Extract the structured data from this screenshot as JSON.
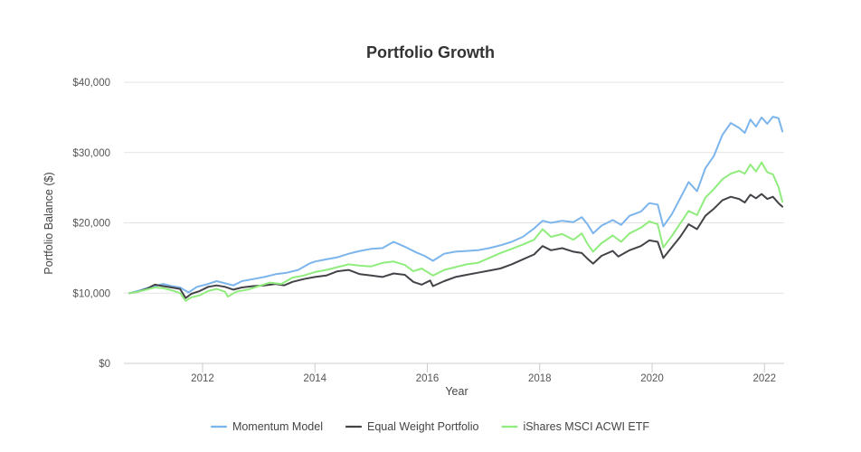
{
  "chart_data": {
    "type": "line",
    "title": "Portfolio Growth",
    "xlabel": "Year",
    "ylabel": "Portfolio Balance ($)",
    "xlim": [
      2010.6,
      2022.35
    ],
    "ylim": [
      0,
      40000
    ],
    "x_ticks": [
      2012,
      2014,
      2016,
      2018,
      2020,
      2022
    ],
    "x_tick_labels": [
      "2012",
      "2014",
      "2016",
      "2018",
      "2020",
      "2022"
    ],
    "y_ticks": [
      0,
      10000,
      20000,
      30000,
      40000
    ],
    "y_tick_labels": [
      "$0",
      "$10,000",
      "$20,000",
      "$30,000",
      "$40,000"
    ],
    "grid": true,
    "legend_position": "bottom",
    "series": [
      {
        "name": "Momentum Model",
        "color": "#7cb5ec",
        "points": [
          [
            2010.7,
            10000
          ],
          [
            2010.85,
            10300
          ],
          [
            2011.0,
            10700
          ],
          [
            2011.15,
            11000
          ],
          [
            2011.3,
            11300
          ],
          [
            2011.45,
            11000
          ],
          [
            2011.6,
            10800
          ],
          [
            2011.75,
            10100
          ],
          [
            2011.9,
            10900
          ],
          [
            2012.1,
            11300
          ],
          [
            2012.25,
            11700
          ],
          [
            2012.4,
            11400
          ],
          [
            2012.55,
            11100
          ],
          [
            2012.7,
            11700
          ],
          [
            2012.9,
            12000
          ],
          [
            2013.1,
            12300
          ],
          [
            2013.3,
            12700
          ],
          [
            2013.5,
            12900
          ],
          [
            2013.7,
            13300
          ],
          [
            2013.9,
            14200
          ],
          [
            2014.0,
            14500
          ],
          [
            2014.2,
            14800
          ],
          [
            2014.4,
            15100
          ],
          [
            2014.6,
            15600
          ],
          [
            2014.8,
            16000
          ],
          [
            2015.0,
            16300
          ],
          [
            2015.2,
            16400
          ],
          [
            2015.4,
            17300
          ],
          [
            2015.6,
            16600
          ],
          [
            2015.8,
            15800
          ],
          [
            2015.95,
            15300
          ],
          [
            2016.1,
            14600
          ],
          [
            2016.3,
            15600
          ],
          [
            2016.5,
            15900
          ],
          [
            2016.7,
            16000
          ],
          [
            2016.9,
            16100
          ],
          [
            2017.1,
            16400
          ],
          [
            2017.3,
            16800
          ],
          [
            2017.5,
            17300
          ],
          [
            2017.7,
            18000
          ],
          [
            2017.9,
            19200
          ],
          [
            2018.05,
            20300
          ],
          [
            2018.2,
            20000
          ],
          [
            2018.4,
            20300
          ],
          [
            2018.6,
            20100
          ],
          [
            2018.75,
            20800
          ],
          [
            2018.85,
            19800
          ],
          [
            2018.95,
            18500
          ],
          [
            2019.1,
            19600
          ],
          [
            2019.3,
            20400
          ],
          [
            2019.45,
            19700
          ],
          [
            2019.6,
            21000
          ],
          [
            2019.8,
            21600
          ],
          [
            2019.95,
            22800
          ],
          [
            2020.1,
            22600
          ],
          [
            2020.2,
            19500
          ],
          [
            2020.35,
            21200
          ],
          [
            2020.5,
            23500
          ],
          [
            2020.65,
            25800
          ],
          [
            2020.8,
            24500
          ],
          [
            2020.95,
            27800
          ],
          [
            2021.1,
            29500
          ],
          [
            2021.25,
            32500
          ],
          [
            2021.4,
            34200
          ],
          [
            2021.55,
            33500
          ],
          [
            2021.65,
            32800
          ],
          [
            2021.75,
            34700
          ],
          [
            2021.85,
            33700
          ],
          [
            2021.95,
            35000
          ],
          [
            2022.05,
            34100
          ],
          [
            2022.15,
            35100
          ],
          [
            2022.25,
            34900
          ],
          [
            2022.32,
            33000
          ]
        ]
      },
      {
        "name": "Equal Weight Portfolio",
        "color": "#434348",
        "points": [
          [
            2010.7,
            10000
          ],
          [
            2010.85,
            10200
          ],
          [
            2011.0,
            10600
          ],
          [
            2011.15,
            11200
          ],
          [
            2011.3,
            11000
          ],
          [
            2011.45,
            10800
          ],
          [
            2011.6,
            10600
          ],
          [
            2011.7,
            9300
          ],
          [
            2011.8,
            9900
          ],
          [
            2011.95,
            10300
          ],
          [
            2012.1,
            10900
          ],
          [
            2012.25,
            11100
          ],
          [
            2012.4,
            10900
          ],
          [
            2012.55,
            10500
          ],
          [
            2012.7,
            10800
          ],
          [
            2012.9,
            11000
          ],
          [
            2013.1,
            11100
          ],
          [
            2013.3,
            11300
          ],
          [
            2013.45,
            11100
          ],
          [
            2013.6,
            11600
          ],
          [
            2013.8,
            12000
          ],
          [
            2014.0,
            12300
          ],
          [
            2014.2,
            12500
          ],
          [
            2014.4,
            13100
          ],
          [
            2014.6,
            13300
          ],
          [
            2014.8,
            12700
          ],
          [
            2015.0,
            12500
          ],
          [
            2015.2,
            12300
          ],
          [
            2015.4,
            12800
          ],
          [
            2015.6,
            12600
          ],
          [
            2015.75,
            11600
          ],
          [
            2015.9,
            11200
          ],
          [
            2016.05,
            11800
          ],
          [
            2016.1,
            11000
          ],
          [
            2016.3,
            11700
          ],
          [
            2016.5,
            12300
          ],
          [
            2016.7,
            12600
          ],
          [
            2016.9,
            12900
          ],
          [
            2017.1,
            13200
          ],
          [
            2017.3,
            13500
          ],
          [
            2017.5,
            14100
          ],
          [
            2017.7,
            14800
          ],
          [
            2017.9,
            15500
          ],
          [
            2018.05,
            16700
          ],
          [
            2018.2,
            16100
          ],
          [
            2018.4,
            16400
          ],
          [
            2018.6,
            15900
          ],
          [
            2018.75,
            15700
          ],
          [
            2018.85,
            14900
          ],
          [
            2018.95,
            14200
          ],
          [
            2019.1,
            15300
          ],
          [
            2019.3,
            16000
          ],
          [
            2019.4,
            15200
          ],
          [
            2019.6,
            16100
          ],
          [
            2019.8,
            16700
          ],
          [
            2019.95,
            17500
          ],
          [
            2020.1,
            17300
          ],
          [
            2020.2,
            15000
          ],
          [
            2020.35,
            16500
          ],
          [
            2020.5,
            18000
          ],
          [
            2020.65,
            19800
          ],
          [
            2020.8,
            19100
          ],
          [
            2020.95,
            21000
          ],
          [
            2021.1,
            22000
          ],
          [
            2021.25,
            23200
          ],
          [
            2021.4,
            23700
          ],
          [
            2021.55,
            23400
          ],
          [
            2021.65,
            22900
          ],
          [
            2021.75,
            24000
          ],
          [
            2021.85,
            23500
          ],
          [
            2021.95,
            24100
          ],
          [
            2022.05,
            23400
          ],
          [
            2022.15,
            23700
          ],
          [
            2022.25,
            22800
          ],
          [
            2022.32,
            22300
          ]
        ]
      },
      {
        "name": "iShares MSCI ACWI ETF",
        "color": "#90ed7d",
        "points": [
          [
            2010.7,
            10000
          ],
          [
            2010.85,
            10200
          ],
          [
            2011.0,
            10500
          ],
          [
            2011.15,
            10800
          ],
          [
            2011.3,
            10700
          ],
          [
            2011.45,
            10400
          ],
          [
            2011.6,
            10000
          ],
          [
            2011.7,
            8900
          ],
          [
            2011.8,
            9400
          ],
          [
            2011.95,
            9700
          ],
          [
            2012.1,
            10300
          ],
          [
            2012.25,
            10600
          ],
          [
            2012.4,
            10200
          ],
          [
            2012.45,
            9500
          ],
          [
            2012.6,
            10200
          ],
          [
            2012.8,
            10500
          ],
          [
            2013.0,
            11000
          ],
          [
            2013.2,
            11500
          ],
          [
            2013.4,
            11300
          ],
          [
            2013.6,
            12200
          ],
          [
            2013.8,
            12500
          ],
          [
            2014.0,
            13000
          ],
          [
            2014.2,
            13300
          ],
          [
            2014.4,
            13700
          ],
          [
            2014.6,
            14100
          ],
          [
            2014.8,
            13900
          ],
          [
            2015.0,
            13800
          ],
          [
            2015.2,
            14300
          ],
          [
            2015.4,
            14500
          ],
          [
            2015.6,
            14000
          ],
          [
            2015.75,
            13100
          ],
          [
            2015.9,
            13500
          ],
          [
            2016.1,
            12500
          ],
          [
            2016.3,
            13300
          ],
          [
            2016.5,
            13700
          ],
          [
            2016.7,
            14100
          ],
          [
            2016.9,
            14300
          ],
          [
            2017.1,
            15000
          ],
          [
            2017.3,
            15700
          ],
          [
            2017.5,
            16300
          ],
          [
            2017.7,
            16900
          ],
          [
            2017.9,
            17600
          ],
          [
            2018.05,
            19100
          ],
          [
            2018.2,
            18000
          ],
          [
            2018.4,
            18400
          ],
          [
            2018.6,
            17600
          ],
          [
            2018.75,
            18500
          ],
          [
            2018.85,
            17000
          ],
          [
            2018.95,
            15900
          ],
          [
            2019.1,
            17100
          ],
          [
            2019.3,
            18200
          ],
          [
            2019.45,
            17300
          ],
          [
            2019.6,
            18500
          ],
          [
            2019.8,
            19300
          ],
          [
            2019.95,
            20200
          ],
          [
            2020.1,
            19800
          ],
          [
            2020.2,
            16500
          ],
          [
            2020.35,
            18100
          ],
          [
            2020.5,
            19900
          ],
          [
            2020.65,
            21700
          ],
          [
            2020.8,
            21100
          ],
          [
            2020.95,
            23600
          ],
          [
            2021.1,
            24800
          ],
          [
            2021.25,
            26200
          ],
          [
            2021.4,
            27000
          ],
          [
            2021.55,
            27400
          ],
          [
            2021.65,
            27000
          ],
          [
            2021.75,
            28300
          ],
          [
            2021.85,
            27300
          ],
          [
            2021.95,
            28600
          ],
          [
            2022.05,
            27200
          ],
          [
            2022.15,
            26900
          ],
          [
            2022.25,
            25100
          ],
          [
            2022.32,
            23000
          ]
        ]
      }
    ]
  }
}
